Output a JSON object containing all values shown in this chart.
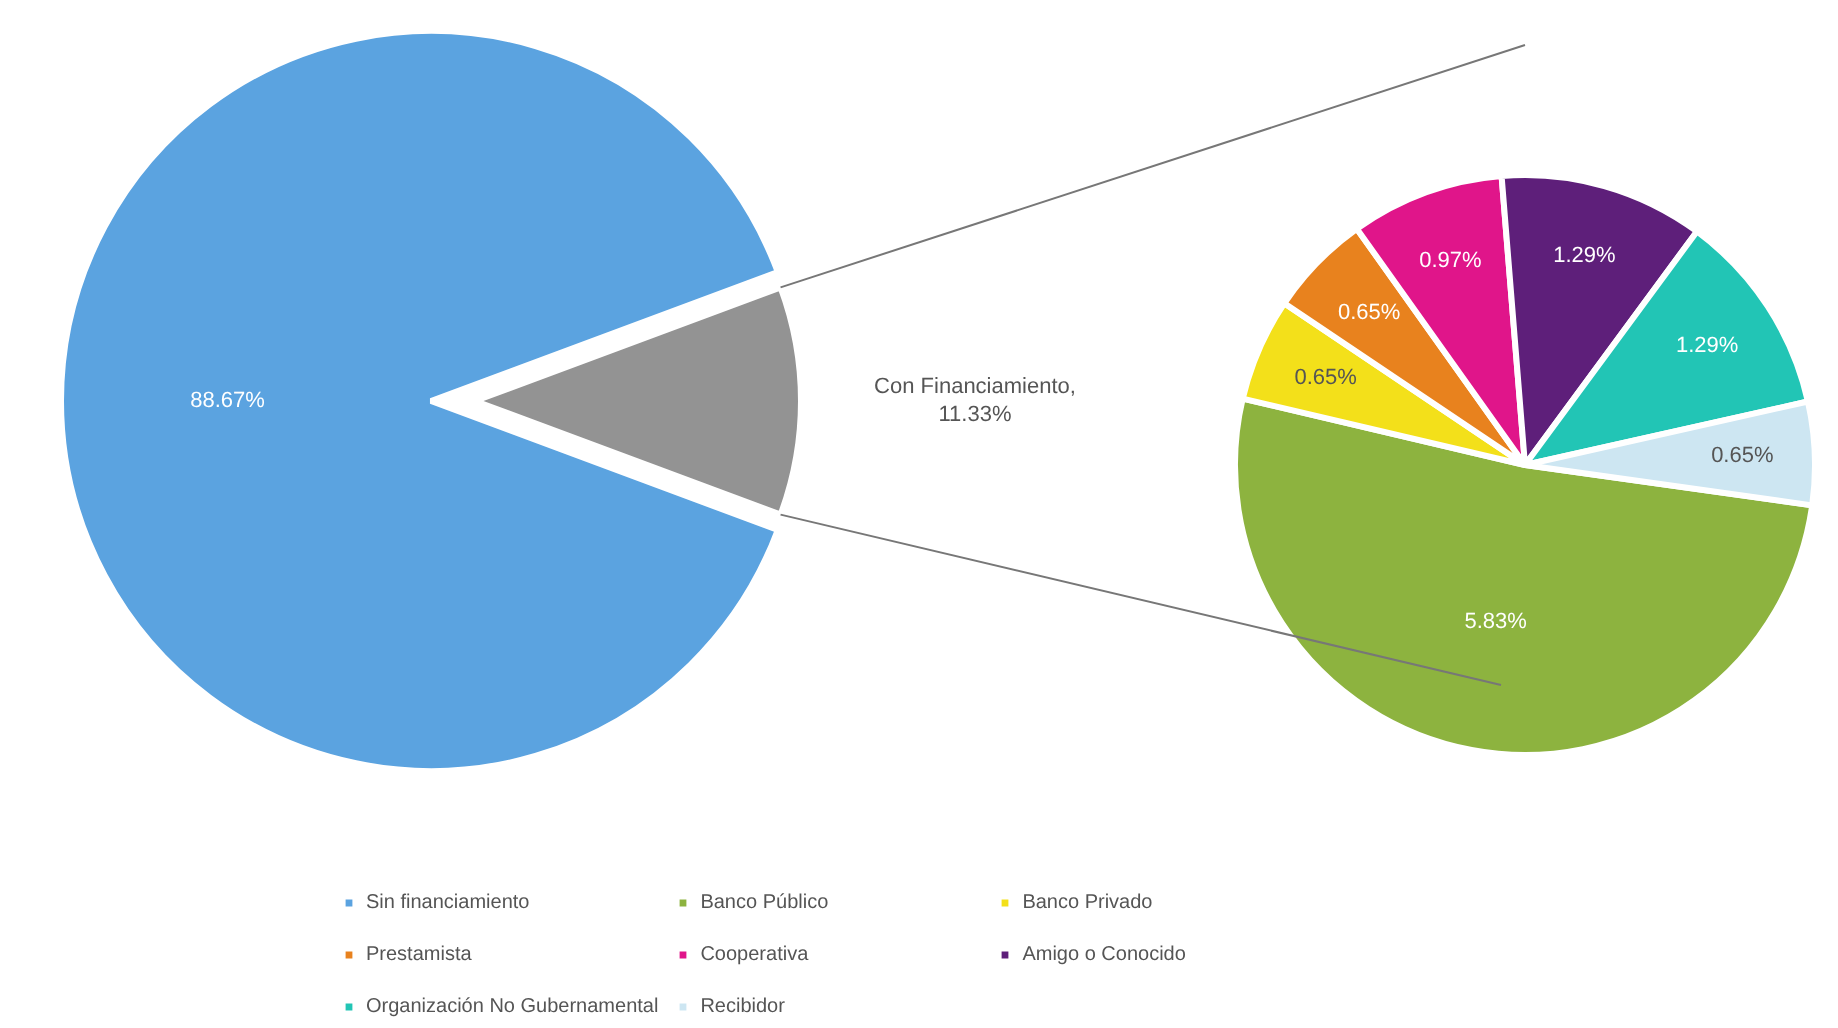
{
  "chart_data": [
    {
      "type": "pie",
      "categories": [
        "Sin financiamiento",
        null
      ],
      "values": [
        88.67,
        11.33
      ],
      "colors": [
        "#5ba3e0",
        "#939393"
      ],
      "value_labels": [
        "88.67%",
        "Con Financiamiento, 11.33%"
      ],
      "legend": "bottom"
    },
    {
      "type": "pie",
      "categories": [
        "Banco Público",
        "Banco Privado",
        "Prestamista",
        "Cooperativa",
        "Amigo o Conocido",
        "Organización No Gubernamental",
        "Recibidor"
      ],
      "values": [
        5.83,
        0.65,
        0.65,
        0.97,
        1.29,
        1.29,
        0.65
      ],
      "colors": [
        "#8db33f",
        "#f3e01a",
        "#e8821e",
        "#e0158a",
        "#5e1f7a",
        "#22c5b5",
        "#cde6f2"
      ],
      "value_labels": [
        "5.83%",
        "0.65%",
        "0.65%",
        "0.97%",
        "1.29%",
        "1.29%",
        "0.65%"
      ],
      "legend": "bottom"
    }
  ]
}
